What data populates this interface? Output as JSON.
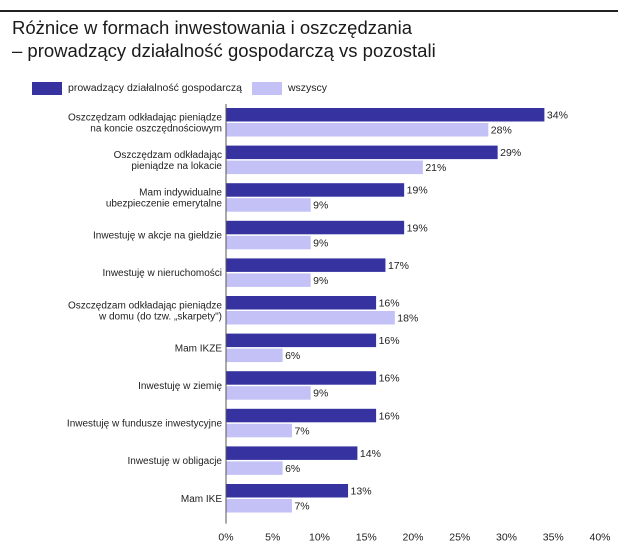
{
  "title_line1": "Różnice w formach inwestowania i oszczędzania",
  "title_line2": "– prowadzący działalność gospodarczą vs pozostali",
  "colors": {
    "series1": "#3633a1",
    "series2": "#c3c1f5",
    "text": "#222222"
  },
  "chart_data": {
    "type": "bar",
    "orientation": "horizontal",
    "title": "Różnice w formach inwestowania i oszczędzania – prowadzący działalność gospodarczą vs pozostali",
    "categories": [
      [
        "Oszczędzam odkładając pieniądze",
        "na koncie oszczędnościowym"
      ],
      [
        "Oszczędzam odkładając",
        "pieniądze na lokacie"
      ],
      [
        "Mam indywidualne",
        "ubezpieczenie emerytalne"
      ],
      [
        "Inwestuję w akcje na giełdzie"
      ],
      [
        "Inwestuję w nieruchomości"
      ],
      [
        "Oszczędzam odkładając pieniądze",
        "w domu (do tzw. „skarpety\")"
      ],
      [
        "Mam IKZE"
      ],
      [
        "Inwestuję w ziemię"
      ],
      [
        "Inwestuję w fundusze inwestycyjne"
      ],
      [
        "Inwestuję w obligacje"
      ],
      [
        "Mam IKE"
      ]
    ],
    "series": [
      {
        "name": "prowadzący działalność gospodarczą",
        "values": [
          34,
          29,
          19,
          19,
          17,
          16,
          16,
          16,
          16,
          14,
          13
        ]
      },
      {
        "name": "wszyscy",
        "values": [
          28,
          21,
          9,
          9,
          9,
          18,
          6,
          9,
          7,
          6,
          7
        ]
      }
    ],
    "value_suffix": "%",
    "xlim": [
      0,
      40
    ],
    "xticks": [
      0,
      5,
      10,
      15,
      20,
      25,
      30,
      35,
      40
    ],
    "xtick_labels": [
      "0%",
      "5%",
      "10%",
      "15%",
      "20%",
      "25%",
      "30%",
      "35%",
      "40%"
    ],
    "grid": false,
    "legend_position": "top-left"
  }
}
